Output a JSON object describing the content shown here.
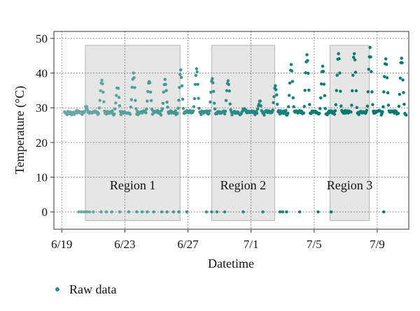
{
  "chart_data": {
    "type": "scatter",
    "title": "",
    "xlabel": "Datetime",
    "ylabel": "Temperature (°C)",
    "x_axis": {
      "type": "date",
      "range": [
        "2021-06-18T12:00",
        "2021-07-11T00:00"
      ],
      "ticks": [
        {
          "value": "2021-06-19",
          "label": "6/19"
        },
        {
          "value": "2021-06-23",
          "label": "6/23"
        },
        {
          "value": "2021-06-27",
          "label": "6/27"
        },
        {
          "value": "2021-07-01",
          "label": "7/1"
        },
        {
          "value": "2021-07-05",
          "label": "7/5"
        },
        {
          "value": "2021-07-09",
          "label": "7/9"
        }
      ]
    },
    "y_axis": {
      "range": [
        -5,
        52
      ],
      "ticks": [
        0,
        10,
        20,
        30,
        40,
        50
      ]
    },
    "grid": "dotted",
    "regions": [
      {
        "label": "Region 1",
        "start": "2021-06-20T12:00",
        "end": "2021-06-26T12:00",
        "y_range": [
          -2.5,
          48
        ]
      },
      {
        "label": "Region 2",
        "start": "2021-06-28T12:00",
        "end": "2021-07-02T12:00",
        "y_range": [
          -2.5,
          48
        ]
      },
      {
        "label": "Region 3",
        "start": "2021-07-06T00:00",
        "end": "2021-07-08T12:00",
        "y_range": [
          -2.5,
          48
        ]
      }
    ],
    "daily_peaks": [
      {
        "date": "2021-06-19",
        "peak": 28.5
      },
      {
        "date": "2021-06-20",
        "peak": 30
      },
      {
        "date": "2021-06-21",
        "peak": 37.5
      },
      {
        "date": "2021-06-22",
        "peak": 36
      },
      {
        "date": "2021-06-23",
        "peak": 39.5
      },
      {
        "date": "2021-06-24",
        "peak": 37.5
      },
      {
        "date": "2021-06-25",
        "peak": 38
      },
      {
        "date": "2021-06-26",
        "peak": 40.5
      },
      {
        "date": "2021-06-27",
        "peak": 41
      },
      {
        "date": "2021-06-28",
        "peak": 38
      },
      {
        "date": "2021-06-29",
        "peak": 37.5
      },
      {
        "date": "2021-06-30",
        "peak": 30
      },
      {
        "date": "2021-07-01",
        "peak": 32
      },
      {
        "date": "2021-07-02",
        "peak": 36.5
      },
      {
        "date": "2021-07-03",
        "peak": 42.5
      },
      {
        "date": "2021-07-04",
        "peak": 45.5
      },
      {
        "date": "2021-07-05",
        "peak": 42
      },
      {
        "date": "2021-07-06",
        "peak": 45.5
      },
      {
        "date": "2021-07-07",
        "peak": 46
      },
      {
        "date": "2021-07-08",
        "peak": 47
      },
      {
        "date": "2021-07-09",
        "peak": 44.5
      },
      {
        "date": "2021-07-10",
        "peak": 44
      }
    ],
    "baseline_temperature": 28.5,
    "zero_readings": [
      "2021-06-20T02:00",
      "2021-06-20T06:00",
      "2021-06-20T10:00",
      "2021-06-20T14:00",
      "2021-06-20T18:00",
      "2021-06-21T00:00",
      "2021-06-21T12:00",
      "2021-06-21T20:00",
      "2021-06-22T04:00",
      "2021-06-22T16:00",
      "2021-06-23T06:00",
      "2021-06-23T18:00",
      "2021-06-24T02:00",
      "2021-06-24T10:00",
      "2021-06-24T20:00",
      "2021-06-25T08:00",
      "2021-06-25T16:00",
      "2021-06-26T02:00",
      "2021-06-26T10:00",
      "2021-06-26T22:00",
      "2021-06-28T04:00",
      "2021-06-28T12:00",
      "2021-06-28T20:00",
      "2021-06-29T08:00",
      "2021-06-30T12:00",
      "2021-07-01T18:00",
      "2021-07-02T20:00",
      "2021-07-03T00:00",
      "2021-07-03T06:00",
      "2021-07-04T02:00",
      "2021-07-05T06:00",
      "2021-07-06T02:00",
      "2021-07-09T10:00"
    ],
    "series": [
      {
        "name": "Raw data",
        "color": "#2a8c86"
      }
    ],
    "color_gradient": [
      "#6aa8a8",
      "#007a70"
    ],
    "legend": {
      "position": "bottom-left",
      "label": "Raw data"
    }
  }
}
